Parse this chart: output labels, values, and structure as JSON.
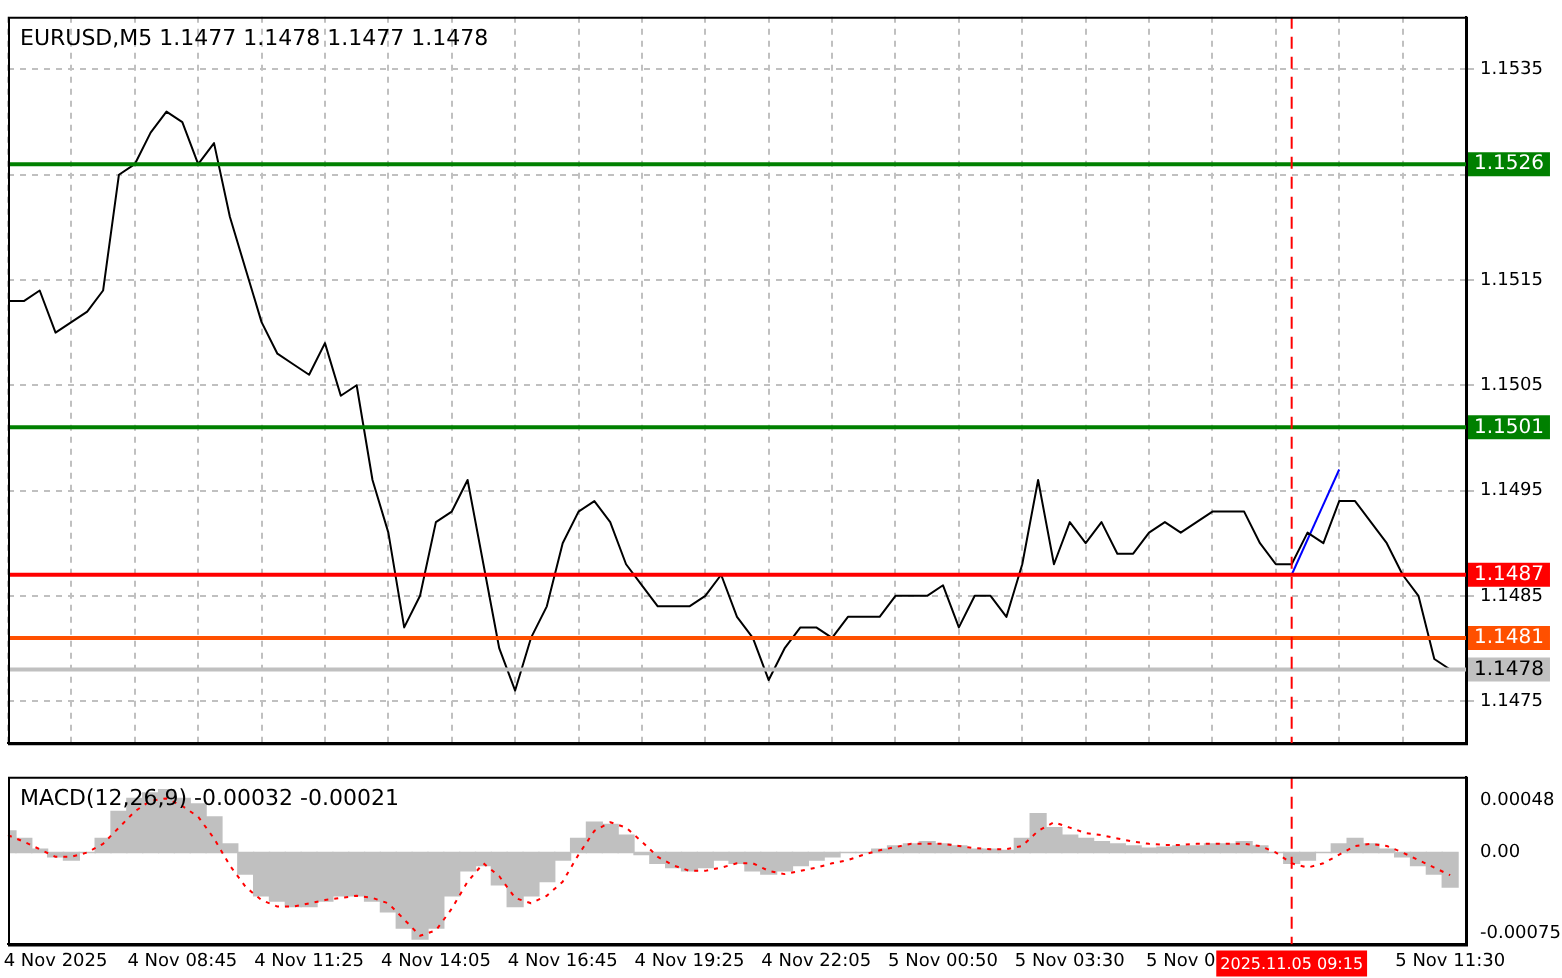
{
  "chart_data": [
    {
      "type": "line",
      "title": "EURUSD,M5 1.1477 1.1478 1.1477 1.1478",
      "categories": [
        null,
        null,
        null,
        "4 Nov 2025",
        null,
        null,
        null,
        null,
        null,
        null,
        null,
        "4 Nov 08:45",
        null,
        null,
        null,
        null,
        null,
        null,
        null,
        "4 Nov 11:25",
        null,
        null,
        null,
        null,
        null,
        null,
        null,
        "4 Nov 14:05",
        null,
        null,
        null,
        null,
        null,
        null,
        null,
        "4 Nov 16:45",
        null,
        null,
        null,
        null,
        null,
        null,
        null,
        "4 Nov 19:25",
        null,
        null,
        null,
        null,
        null,
        null,
        null,
        "4 Nov 22:05",
        null,
        null,
        null,
        null,
        null,
        null,
        null,
        "5 Nov 00:50",
        null,
        null,
        null,
        null,
        null,
        null,
        null,
        "5 Nov 03:30",
        null,
        null,
        null,
        null,
        null,
        null,
        "5 Nov 0",
        null,
        null,
        null,
        null,
        null,
        null,
        "2025.11.05 09:15",
        null,
        null,
        null,
        null,
        null,
        null,
        null,
        null,
        null,
        "5 Nov 11:30",
        null
      ],
      "series": [
        {
          "color": "#000000",
          "values": [
            1.1513,
            1.1513,
            1.1514,
            1.151,
            1.1511,
            1.1512,
            1.1514,
            1.1525,
            1.1526,
            1.1529,
            1.1531,
            1.153,
            1.1526,
            1.1528,
            1.1521,
            1.1516,
            1.1511,
            1.1508,
            1.1507,
            1.1506,
            1.1509,
            1.1504,
            1.1505,
            1.1496,
            1.1491,
            1.1482,
            1.1485,
            1.1492,
            1.1493,
            1.1496,
            1.1488,
            1.148,
            1.1476,
            1.1481,
            1.1484,
            1.149,
            1.1493,
            1.1494,
            1.1492,
            1.1488,
            1.1486,
            1.1484,
            1.1484,
            1.1484,
            1.1485,
            1.1487,
            1.1483,
            1.1481,
            1.1477,
            1.148,
            1.1482,
            1.1482,
            1.1481,
            1.1483,
            1.1483,
            1.1483,
            1.1485,
            1.1485,
            1.1485,
            1.1486,
            1.1482,
            1.1485,
            1.1485,
            1.1483,
            1.1488,
            1.1496,
            1.1488,
            1.1492,
            1.149,
            1.1492,
            1.1489,
            1.1489,
            1.1491,
            1.1492,
            1.1491,
            1.1492,
            1.1493,
            1.1493,
            1.1493,
            1.149,
            1.1488,
            1.1488,
            1.1491,
            1.149,
            1.1494,
            1.1494,
            1.1492,
            1.149,
            1.1487,
            1.1485,
            1.1479,
            1.1478,
            null
          ]
        },
        {
          "color": "#0000ff",
          "values": [
            null,
            null,
            null,
            null,
            null,
            null,
            null,
            null,
            null,
            null,
            null,
            null,
            null,
            null,
            null,
            null,
            null,
            null,
            null,
            null,
            null,
            null,
            null,
            null,
            null,
            null,
            null,
            null,
            null,
            null,
            null,
            null,
            null,
            null,
            null,
            null,
            null,
            null,
            null,
            null,
            null,
            null,
            null,
            null,
            null,
            null,
            null,
            null,
            null,
            null,
            null,
            null,
            null,
            null,
            null,
            null,
            null,
            null,
            null,
            null,
            null,
            null,
            null,
            null,
            null,
            null,
            null,
            null,
            null,
            null,
            null,
            null,
            null,
            null,
            null,
            null,
            null,
            null,
            null,
            null,
            null,
            1.1487,
            null,
            null,
            1.1497,
            null,
            null,
            null,
            null,
            null,
            null,
            null,
            null
          ]
        }
      ],
      "ylim": [
        1.1471,
        1.154
      ],
      "yticks": [
        1.1475,
        1.1485,
        1.1495,
        1.1505,
        1.1515,
        {
          "value": 1.1525,
          "label": null
        },
        1.1535
      ],
      "grid": true,
      "marker": "none",
      "tick_labels": "y",
      "ref_lines": [
        {
          "axis": "y",
          "value": 1.1526,
          "label": "1.1526",
          "color": "#008000"
        },
        {
          "axis": "y",
          "value": 1.1501,
          "label": "1.1501",
          "color": "#008000"
        },
        {
          "axis": "y",
          "value": 1.1487,
          "label": "1.1487",
          "color": "#ff0000"
        },
        {
          "axis": "y",
          "value": 1.1481,
          "label": "1.1481",
          "color": "#ff5000"
        },
        {
          "axis": "y",
          "value": 1.1478,
          "label": "1.1478",
          "color": "#c0c0c0"
        },
        {
          "axis": "x",
          "value": "2025.11.05 09:15",
          "color": "#ff0000",
          "line_style": "dashed"
        }
      ]
    },
    {
      "type": "bar",
      "title": "MACD(12,26,9) -0.00032 -0.00021",
      "categories": [
        null,
        null,
        null,
        "4 Nov 2025",
        null,
        null,
        null,
        null,
        null,
        null,
        null,
        "4 Nov 08:45",
        null,
        null,
        null,
        null,
        null,
        null,
        null,
        "4 Nov 11:25",
        null,
        null,
        null,
        null,
        null,
        null,
        null,
        "4 Nov 14:05",
        null,
        null,
        null,
        null,
        null,
        null,
        null,
        "4 Nov 16:45",
        null,
        null,
        null,
        null,
        null,
        null,
        null,
        "4 Nov 19:25",
        null,
        null,
        null,
        null,
        null,
        null,
        null,
        "4 Nov 22:05",
        null,
        null,
        null,
        null,
        null,
        null,
        null,
        "5 Nov 00:50",
        null,
        null,
        null,
        null,
        null,
        null,
        null,
        "5 Nov 03:30",
        null,
        null,
        null,
        null,
        null,
        null,
        "5 Nov 0",
        null,
        null,
        null,
        null,
        null,
        null,
        "2025.11.05 09:15",
        null,
        null,
        null,
        null,
        null,
        null,
        null,
        null,
        null,
        "5 Nov 11:30",
        null
      ],
      "series": [
        {
          "color": "#c0c0c0",
          "values": [
            0.0002,
            0.00013,
            3e-05,
            -4e-05,
            -7e-05,
            0,
            0.00013,
            0.00038,
            0.0005,
            0.00055,
            0.00058,
            0.0005,
            0.00045,
            0.00033,
            8e-05,
            -0.0002,
            -0.0004,
            -0.00045,
            -0.0005,
            -0.0005,
            -0.00045,
            -0.0004,
            -0.0004,
            -0.00045,
            -0.00055,
            -0.0007,
            -0.0008,
            -0.0007,
            -0.0004,
            -0.00017,
            -0.00012,
            -0.0003,
            -0.0005,
            -0.0004,
            -0.00027,
            -7e-05,
            0.00013,
            0.00028,
            0.00026,
            0.00016,
            -2e-05,
            -0.0001,
            -0.00014,
            -0.00017,
            -0.00014,
            -7e-05,
            -0.0001,
            -0.00017,
            -0.0002,
            -0.00017,
            -0.00012,
            -7e-05,
            -4e-05,
            0,
            0,
            3e-05,
            6e-05,
            8e-05,
            0.0001,
            8e-05,
            6e-05,
            3e-05,
            3e-05,
            2e-05,
            0.00013,
            0.00036,
            0.00023,
            0.00016,
            0.00013,
            0.0001,
            8e-05,
            6e-05,
            4e-05,
            5e-05,
            6e-05,
            6e-05,
            8e-05,
            8e-05,
            0.0001,
            6e-05,
            0,
            -0.0001,
            -7e-05,
            0,
            8e-05,
            0.00013,
            8e-05,
            3e-05,
            -4e-05,
            -0.00012,
            -0.0002,
            -0.00032,
            null
          ]
        },
        {
          "type": "line",
          "color": "#ff0000",
          "line_style": "dotted",
          "values": [
            0.00016,
            0.0001,
            3e-05,
            -4e-05,
            -4e-05,
            0,
            8e-05,
            0.00023,
            0.00038,
            0.00048,
            0.0005,
            0.00043,
            0.00033,
            0.00013,
            -0.00012,
            -0.00032,
            -0.00044,
            -0.0005,
            -0.0005,
            -0.00047,
            -0.00044,
            -0.00042,
            -0.0004,
            -0.00042,
            -0.00047,
            -0.00062,
            -0.00077,
            -0.00072,
            -0.00052,
            -0.00027,
            -0.0001,
            -0.00022,
            -0.00042,
            -0.00047,
            -0.0004,
            -0.00027,
            -2e-05,
            0.0002,
            0.00028,
            0.00023,
            0.0001,
            -4e-05,
            -0.00012,
            -0.00017,
            -0.00017,
            -0.00014,
            -0.0001,
            -0.0001,
            -0.00017,
            -0.0002,
            -0.00017,
            -0.00014,
            -0.0001,
            -7e-05,
            -2e-05,
            2e-05,
            5e-05,
            8e-05,
            8e-05,
            8e-05,
            6e-05,
            4e-05,
            3e-05,
            3e-05,
            6e-05,
            0.0002,
            0.00028,
            0.00023,
            0.00018,
            0.00016,
            0.00013,
            0.0001,
            8e-05,
            7e-05,
            7e-05,
            8e-05,
            8e-05,
            8e-05,
            8e-05,
            6e-05,
            0,
            -0.0001,
            -0.00014,
            -0.0001,
            -2e-05,
            6e-05,
            8e-05,
            6e-05,
            0,
            -7e-05,
            -0.00014,
            -0.00021,
            null
          ]
        }
      ],
      "ylim": [
        -0.00085,
        0.0007
      ],
      "yticks": [
        -0.00075,
        {
          "value": 0,
          "label": "0.00"
        },
        0.00048
      ],
      "marker": "none",
      "ref_lines": [
        {
          "axis": "x",
          "value": "2025.11.05 09:15",
          "color": "#ff0000",
          "line_style": "dashed"
        }
      ]
    }
  ]
}
